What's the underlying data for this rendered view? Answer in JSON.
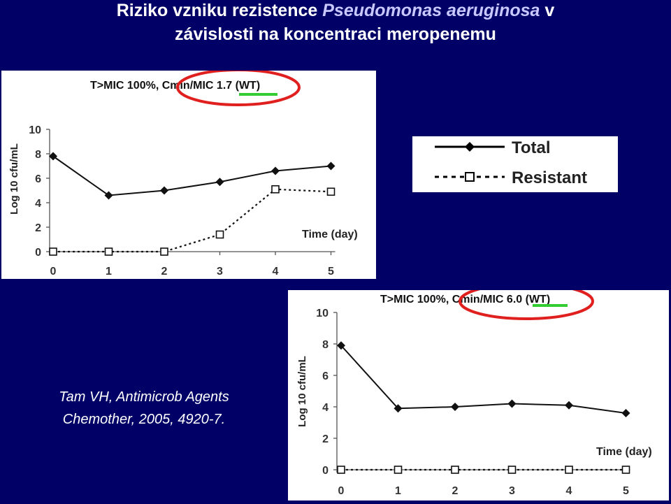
{
  "slide": {
    "title_part1": "Riziko vzniku rezistence ",
    "title_species": "Pseudomonas aeruginosa",
    "title_part2": " v",
    "title_line2": "závislosti na koncentraci meropenemu",
    "citation_line1": "Tam VH, Antimicrob Agents",
    "citation_line2": "Chemother, 2005, 4920-7."
  },
  "legend": {
    "total_label": "Total",
    "resistant_label": "Resistant"
  },
  "colors": {
    "background": "#000066",
    "highlight_circle": "#e0201e",
    "underline": "#33cc33"
  },
  "chart_data": [
    {
      "type": "line",
      "title": "T>MIC 100%, Cmin/MIC 1.7 (WT)",
      "xlabel": "Time (day)",
      "ylabel": "Log 10 cfu/mL",
      "x": [
        0,
        1,
        2,
        3,
        4,
        5
      ],
      "xticks": [
        "0",
        "1",
        "2",
        "3",
        "4",
        "5"
      ],
      "yticks": [
        "0",
        "2",
        "4",
        "6",
        "8",
        "10"
      ],
      "ylim": [
        0,
        10
      ],
      "series": [
        {
          "name": "Total",
          "values": [
            7.8,
            4.6,
            5.0,
            5.7,
            6.6,
            7.0
          ]
        },
        {
          "name": "Resistant",
          "values": [
            0,
            0,
            0,
            1.4,
            5.1,
            4.9
          ]
        }
      ]
    },
    {
      "type": "line",
      "title": "T>MIC 100%, Cmin/MIC 6.0 (WT)",
      "xlabel": "Time (day)",
      "ylabel": "Log 10 cfu/mL",
      "x": [
        0,
        1,
        2,
        3,
        4,
        5
      ],
      "xticks": [
        "0",
        "1",
        "2",
        "3",
        "4",
        "5"
      ],
      "yticks": [
        "0",
        "2",
        "4",
        "6",
        "8",
        "10"
      ],
      "ylim": [
        0,
        10
      ],
      "series": [
        {
          "name": "Total",
          "values": [
            7.9,
            3.9,
            4.0,
            4.2,
            4.1,
            3.6
          ]
        },
        {
          "name": "Resistant",
          "values": [
            0,
            0,
            0,
            0,
            0,
            0
          ]
        }
      ]
    }
  ]
}
